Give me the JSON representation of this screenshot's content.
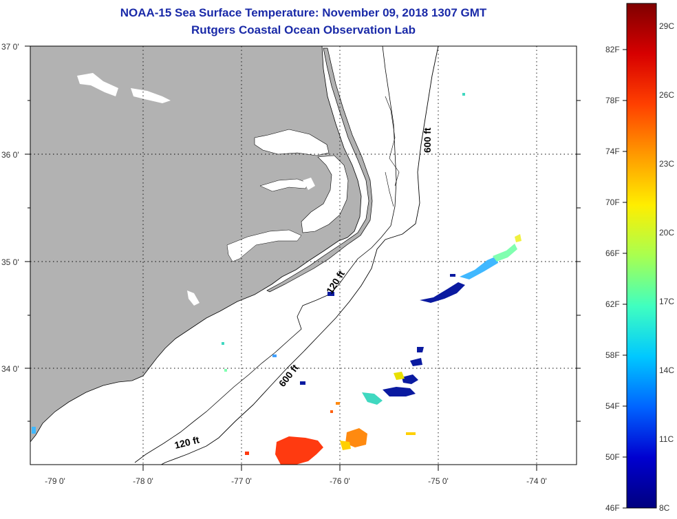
{
  "title": {
    "line1": "NOAA-15 Sea Surface Temperature:  November 09, 2018 1307 GMT",
    "line2": "Rutgers Coastal Ocean Observation Lab"
  },
  "axes": {
    "lat_labels": [
      "37 0'",
      "36 0'",
      "35 0'",
      "34 0'"
    ],
    "lon_labels": [
      "-79 0'",
      "-78 0'",
      "-77 0'",
      "-76 0'",
      "-75 0'",
      "-74 0'"
    ]
  },
  "contours": {
    "label_120_north": "120 ft",
    "label_120_south": "120 ft",
    "label_600_north": "600 ft",
    "label_600_south": "600 ft"
  },
  "colorbar": {
    "fahrenheit": [
      "82F",
      "78F",
      "74F",
      "70F",
      "66F",
      "62F",
      "58F",
      "54F",
      "50F",
      "46F"
    ],
    "celsius": [
      "29C",
      "26C",
      "23C",
      "20C",
      "17C",
      "14C",
      "11C",
      "8C"
    ],
    "colors": [
      "#7f0000",
      "#d70000",
      "#ff4000",
      "#ff9a00",
      "#ffee00",
      "#a8ff50",
      "#40ffc0",
      "#00c8ff",
      "#0064ff",
      "#0000d0",
      "#00007f"
    ]
  },
  "colors": {
    "land": "#b2b2b2",
    "title": "#1a2aa8"
  }
}
